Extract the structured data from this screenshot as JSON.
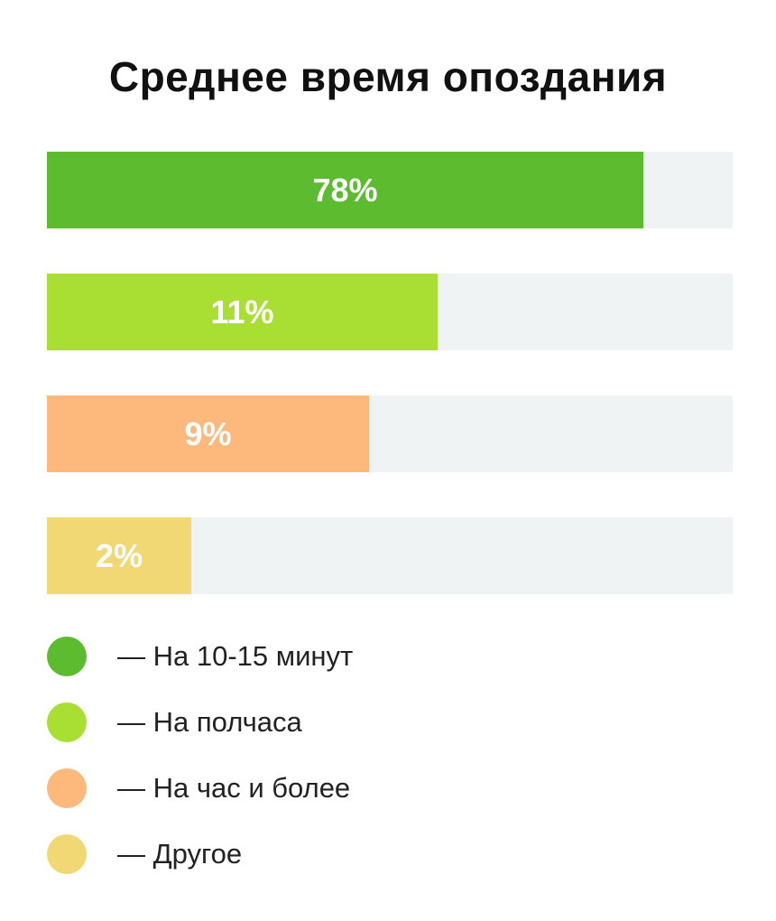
{
  "chart_data": {
    "type": "bar",
    "orientation": "horizontal",
    "title": "Среднее время опоздания",
    "xlabel": "",
    "ylabel": "",
    "xlim": [
      0,
      100
    ],
    "grid": false,
    "legend_position": "bottom-left",
    "categories": [
      "— На 10-15 минут",
      "— На полчаса",
      "— На час и более",
      "— Другое"
    ],
    "values": [
      78,
      11,
      9,
      2
    ],
    "data_labels": [
      "78%",
      "11%",
      "9%",
      "2%"
    ],
    "bar_fill_fraction": [
      0.87,
      0.57,
      0.47,
      0.21
    ],
    "colors": [
      "#5dbb2f",
      "#a8df32",
      "#fdb97c",
      "#f2d874"
    ],
    "track_color": "#f0f3f4"
  }
}
